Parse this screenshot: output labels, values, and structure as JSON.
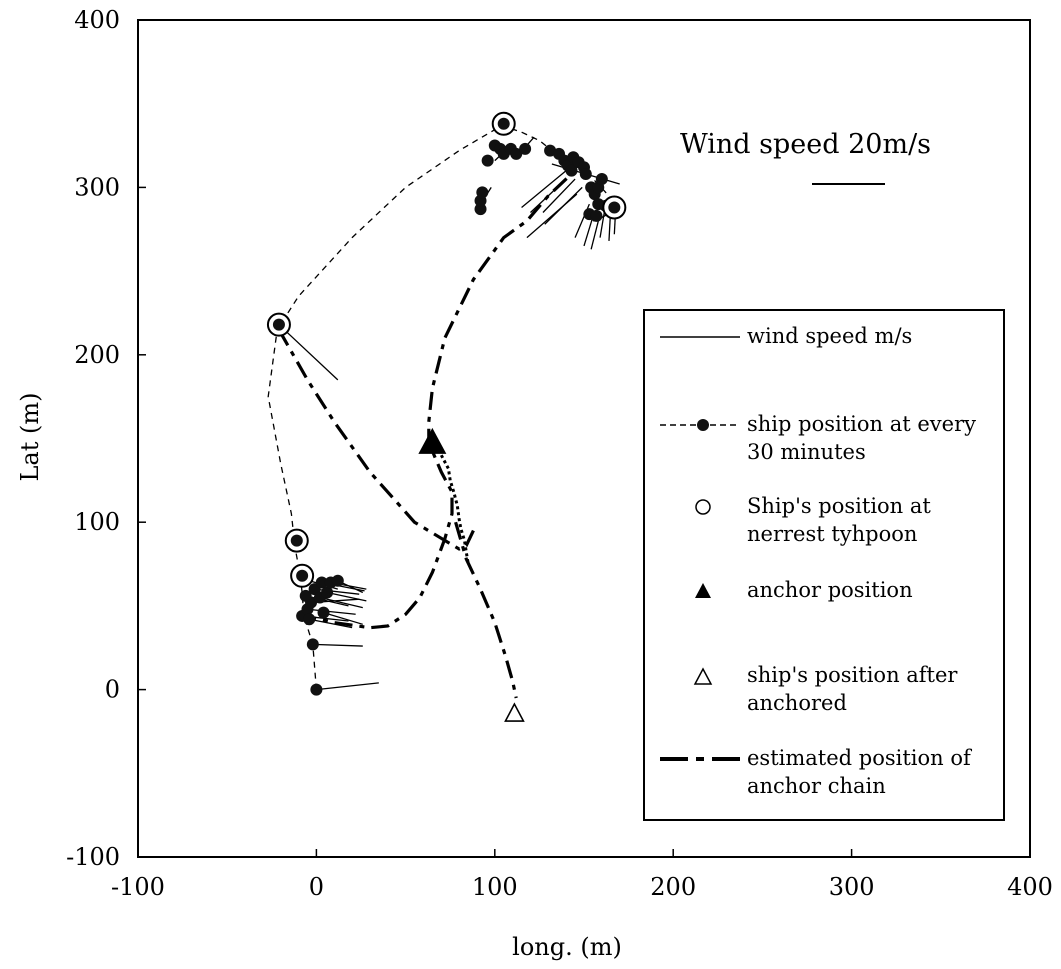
{
  "chart_data": {
    "type": "scatter",
    "title": "",
    "xlabel": "long. (m)",
    "ylabel": "Lat (m)",
    "xlim": [
      -100,
      400
    ],
    "ylim": [
      -100,
      400
    ],
    "xticks": [
      -100,
      0,
      100,
      200,
      300,
      400
    ],
    "yticks": [
      -100,
      0,
      100,
      200,
      300,
      400
    ],
    "grid": false,
    "legend_position": "right",
    "wind_scale": {
      "label": "Wind speed   20m/s"
    },
    "legend": [
      {
        "key": "wind",
        "text": "wind speed m/s",
        "lines": [
          "wind speed m/s"
        ]
      },
      {
        "key": "ship",
        "text": "ship position at every 30 minutes",
        "lines": [
          "ship position at every",
          "30 minutes"
        ]
      },
      {
        "key": "nearest",
        "text": "Ship's position at nerrest tyhpoon",
        "lines": [
          "Ship's position at",
          "nerrest tyhpoon"
        ]
      },
      {
        "key": "anchor",
        "text": "anchor position",
        "lines": [
          "anchor position"
        ]
      },
      {
        "key": "after",
        "text": "ship's position after anchored",
        "lines": [
          "ship's position after",
          "anchored"
        ]
      },
      {
        "key": "chain",
        "text": "estimated position of anchor chain",
        "lines": [
          "estimated position of",
          "anchor chain"
        ]
      }
    ],
    "series": [
      {
        "key": "ship_track",
        "style": "dashed",
        "points": [
          [
            0,
            0
          ],
          [
            -2,
            27
          ],
          [
            -7,
            44
          ],
          [
            -8,
            58
          ],
          [
            -9,
            68
          ],
          [
            -12,
            85
          ],
          [
            -14,
            105
          ],
          [
            -20,
            135
          ],
          [
            -27,
            175
          ],
          [
            -22,
            215
          ],
          [
            -10,
            235
          ],
          [
            20,
            270
          ],
          [
            50,
            300
          ],
          [
            80,
            322
          ],
          [
            104,
            337
          ],
          [
            115,
            333
          ],
          [
            125,
            328
          ],
          [
            132,
            322
          ],
          [
            138,
            318
          ],
          [
            145,
            314
          ],
          [
            152,
            308
          ],
          [
            158,
            302
          ],
          [
            163,
            296
          ],
          [
            166,
            290
          ],
          [
            165,
            285
          ],
          [
            160,
            282
          ],
          [
            155,
            280
          ]
        ]
      },
      {
        "key": "ship_positions",
        "points": [
          [
            0,
            0
          ],
          [
            -2,
            27
          ],
          [
            -8,
            44
          ],
          [
            -5,
            48
          ],
          [
            -3,
            52
          ],
          [
            -6,
            56
          ],
          [
            -1,
            60
          ],
          [
            3,
            64
          ],
          [
            -7,
            66
          ],
          [
            2,
            55
          ],
          [
            6,
            58
          ],
          [
            8,
            64
          ],
          [
            12,
            65
          ],
          [
            -4,
            42
          ],
          [
            4,
            46
          ],
          [
            92,
            287
          ],
          [
            92,
            292
          ],
          [
            93,
            297
          ],
          [
            96,
            316
          ],
          [
            100,
            325
          ],
          [
            103,
            323
          ],
          [
            105,
            320
          ],
          [
            109,
            323
          ],
          [
            112,
            320
          ],
          [
            117,
            323
          ],
          [
            131,
            322
          ],
          [
            136,
            320
          ],
          [
            139,
            316
          ],
          [
            141,
            313
          ],
          [
            143,
            310
          ],
          [
            144,
            318
          ],
          [
            147,
            315
          ],
          [
            150,
            312
          ],
          [
            151,
            308
          ],
          [
            154,
            300
          ],
          [
            156,
            296
          ],
          [
            158,
            290
          ],
          [
            158,
            300
          ],
          [
            160,
            305
          ],
          [
            153,
            284
          ],
          [
            157,
            283
          ],
          [
            162,
            289
          ]
        ]
      },
      {
        "key": "nearest_points",
        "points": [
          [
            -21,
            218
          ],
          [
            -11,
            89
          ],
          [
            -8,
            68
          ],
          [
            105,
            338
          ],
          [
            167,
            288
          ]
        ]
      },
      {
        "key": "wind_vectors",
        "points": [
          [
            [
              0,
              0
            ],
            [
              35,
              4
            ]
          ],
          [
            [
              -2,
              27
            ],
            [
              26,
              26
            ]
          ],
          [
            [
              -8,
              44
            ],
            [
              18,
              41
            ]
          ],
          [
            [
              -5,
              48
            ],
            [
              22,
              45
            ]
          ],
          [
            [
              -3,
              52
            ],
            [
              24,
              54
            ]
          ],
          [
            [
              -6,
              56
            ],
            [
              18,
              50
            ]
          ],
          [
            [
              -1,
              60
            ],
            [
              24,
              57
            ]
          ],
          [
            [
              3,
              64
            ],
            [
              27,
              59
            ]
          ],
          [
            [
              -7,
              66
            ],
            [
              12,
              60
            ]
          ],
          [
            [
              2,
              55
            ],
            [
              26,
              49
            ]
          ],
          [
            [
              6,
              58
            ],
            [
              28,
              53
            ]
          ],
          [
            [
              8,
              64
            ],
            [
              28,
              60
            ]
          ],
          [
            [
              12,
              65
            ],
            [
              26,
              58
            ]
          ],
          [
            [
              -4,
              42
            ],
            [
              20,
              37
            ]
          ],
          [
            [
              4,
              46
            ],
            [
              26,
              39
            ]
          ],
          [
            [
              -21,
              218
            ],
            [
              12,
              185
            ]
          ],
          [
            [
              92,
              290
            ],
            [
              98,
              300
            ]
          ],
          [
            [
              100,
              316
            ],
            [
              110,
              326
            ]
          ],
          [
            [
              112,
              318
            ],
            [
              122,
              330
            ]
          ],
          [
            [
              132,
              314
            ],
            [
              170,
              302
            ]
          ],
          [
            [
              140,
              305
            ],
            [
              120,
              285
            ]
          ],
          [
            [
              149,
              300
            ],
            [
              128,
              278
            ]
          ],
          [
            [
              146,
              296
            ],
            [
              118,
              270
            ]
          ],
          [
            [
              140,
              310
            ],
            [
              115,
              288
            ]
          ],
          [
            [
              145,
              305
            ],
            [
              127,
              285
            ]
          ],
          [
            [
              153,
              290
            ],
            [
              145,
              270
            ]
          ],
          [
            [
              156,
              286
            ],
            [
              150,
              265
            ]
          ],
          [
            [
              159,
              284
            ],
            [
              154,
              263
            ]
          ],
          [
            [
              162,
              289
            ],
            [
              159,
              270
            ]
          ],
          [
            [
              165,
              288
            ],
            [
              164,
              268
            ]
          ],
          [
            [
              168,
              292
            ],
            [
              167,
              272
            ]
          ]
        ]
      },
      {
        "key": "anchor_chain",
        "style": "dash-dot",
        "points": [
          [
            -21,
            215
          ],
          [
            -5,
            185
          ],
          [
            10,
            160
          ],
          [
            30,
            130
          ],
          [
            55,
            100
          ],
          [
            80,
            84
          ],
          [
            84,
            86
          ],
          [
            88,
            95
          ]
        ]
      },
      {
        "key": "anchor_chain_2",
        "style": "dash-dot",
        "points": [
          [
            -10,
            45
          ],
          [
            10,
            40
          ],
          [
            30,
            37
          ],
          [
            40,
            38
          ],
          [
            50,
            45
          ],
          [
            58,
            55
          ],
          [
            65,
            70
          ],
          [
            72,
            90
          ],
          [
            76,
            105
          ],
          [
            76,
            118
          ],
          [
            70,
            130
          ],
          [
            66,
            140
          ],
          [
            63,
            148
          ],
          [
            63,
            160
          ],
          [
            65,
            180
          ],
          [
            72,
            210
          ],
          [
            88,
            245
          ],
          [
            105,
            270
          ],
          [
            118,
            280
          ],
          [
            130,
            295
          ],
          [
            143,
            308
          ]
        ]
      },
      {
        "key": "anchor_chain_3",
        "style": "dash-dot",
        "points": [
          [
            78,
            100
          ],
          [
            84,
            78
          ],
          [
            92,
            60
          ],
          [
            100,
            40
          ],
          [
            106,
            20
          ],
          [
            110,
            5
          ],
          [
            112,
            -5
          ]
        ]
      },
      {
        "key": "anchor_track",
        "style": "dotted",
        "points": [
          [
            70,
            140
          ],
          [
            74,
            132
          ],
          [
            75,
            125
          ],
          [
            77,
            118
          ],
          [
            79,
            110
          ],
          [
            80,
            102
          ],
          [
            81,
            96
          ],
          [
            83,
            89
          ],
          [
            84,
            82
          ],
          [
            85,
            76
          ]
        ]
      },
      {
        "key": "anchor_position",
        "points": [
          [
            65,
            148
          ]
        ]
      },
      {
        "key": "after_anchored",
        "points": [
          [
            111,
            -14
          ]
        ]
      }
    ]
  }
}
